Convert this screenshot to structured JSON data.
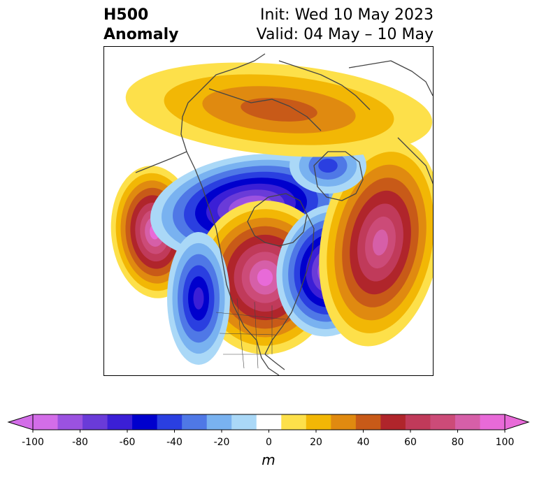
{
  "title": {
    "left_line1": "H500",
    "left_line2": "Anomaly",
    "right_line1": "Init: Wed 10 May 2023",
    "right_line2": "Valid: 04 May – 10 May"
  },
  "colorbar": {
    "label": "m",
    "min": -100,
    "max": 100,
    "step": 10,
    "extend": "both",
    "ticks": [
      "-100",
      "-80",
      "-60",
      "-40",
      "-20",
      "0",
      "20",
      "40",
      "60",
      "80",
      "100"
    ],
    "colors": [
      "#d36de8",
      "#9b52e0",
      "#6a3bd8",
      "#3b1fd6",
      "#0000cd",
      "#2a3fe0",
      "#4f78e6",
      "#79b2f0",
      "#aad8f7",
      "#ffffff",
      "#fde04a",
      "#f2b705",
      "#e08a10",
      "#c85a18",
      "#b0252b",
      "#c03a5a",
      "#cc4b78",
      "#d65fa8",
      "#e86ad8"
    ],
    "under_color": "#d36de8",
    "over_color": "#e86ad8"
  },
  "map": {
    "projection": "polar stereographic, North America",
    "anomaly_centers": [
      {
        "region": "northeast Pacific",
        "sign": "positive",
        "peak_m": 100
      },
      {
        "region": "western Canada / Alaska",
        "sign": "negative",
        "peak_m": -100
      },
      {
        "region": "central Canada",
        "sign": "positive",
        "peak_m": 100
      },
      {
        "region": "western Atlantic",
        "sign": "negative",
        "peak_m": -100
      },
      {
        "region": "central Atlantic",
        "sign": "positive",
        "peak_m": 80
      },
      {
        "region": "Greenland / Baffin",
        "sign": "negative",
        "peak_m": -40
      },
      {
        "region": "Arctic / Siberia",
        "sign": "positive",
        "peak_m": 40
      },
      {
        "region": "eastern Pacific off California",
        "sign": "negative",
        "peak_m": -60
      }
    ]
  }
}
